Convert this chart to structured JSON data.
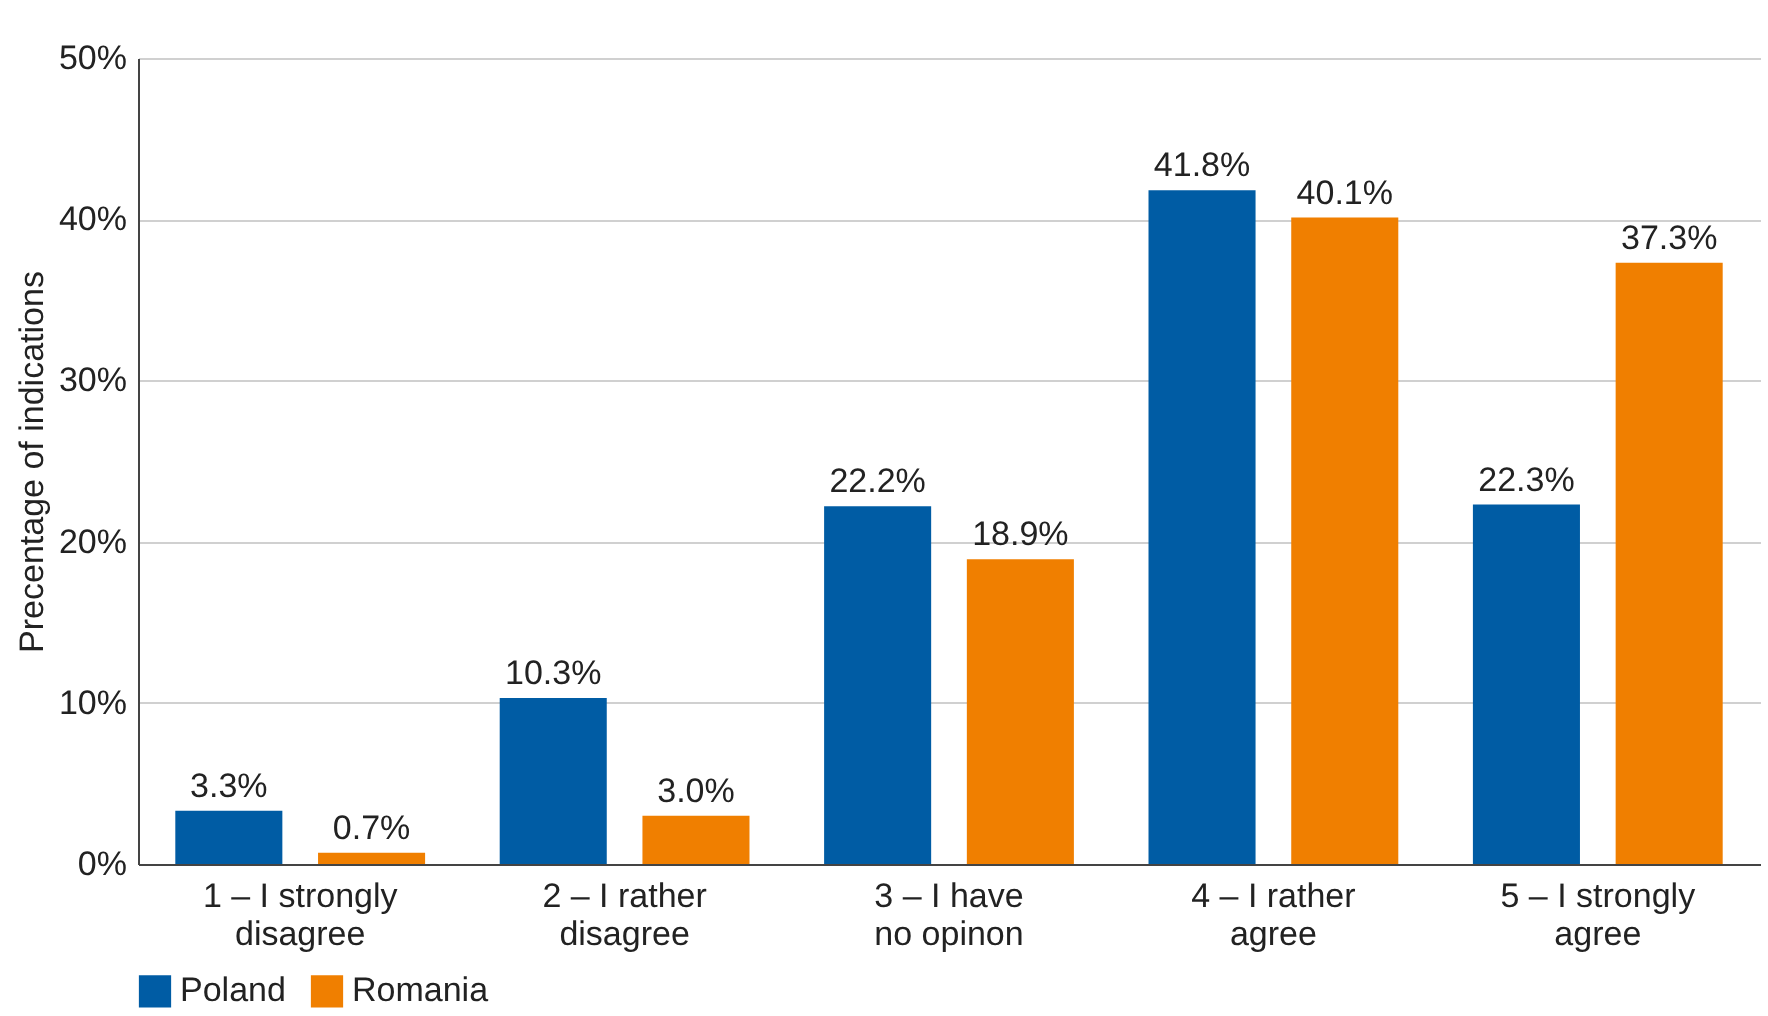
{
  "chart_data": {
    "type": "bar",
    "ylabel": "Precentage of indications",
    "categories": [
      "1 – I strongly disagree",
      "2 – I rather disagree",
      "3 – I have no opinon",
      "4 – I rather agree",
      "5 – I strongly agree"
    ],
    "series": [
      {
        "name": "Poland",
        "color": "#005ca4",
        "values": [
          3.3,
          10.3,
          22.2,
          41.8,
          22.3
        ],
        "value_labels": [
          "3.3%",
          "10.3%",
          "22.2%",
          "41.8%",
          "22.3%"
        ]
      },
      {
        "name": "Romania",
        "color": "#f07f00",
        "values": [
          0.7,
          3.0,
          18.9,
          40.1,
          37.3
        ],
        "value_labels": [
          "0.7%",
          "3.0%",
          "18.9%",
          "40.1%",
          "37.3%"
        ]
      }
    ],
    "ylim": [
      0,
      50
    ],
    "yticks": [
      {
        "value": 0,
        "label": "0%"
      },
      {
        "value": 10,
        "label": "10%"
      },
      {
        "value": 20,
        "label": "20%"
      },
      {
        "value": 30,
        "label": "30%"
      },
      {
        "value": 40,
        "label": "40%"
      },
      {
        "value": 50,
        "label": "50%"
      }
    ],
    "grid": "y",
    "legend": "bottom"
  }
}
